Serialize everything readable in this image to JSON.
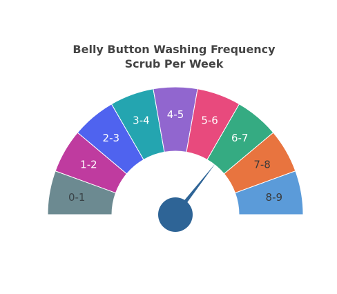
{
  "chart_data": {
    "type": "gauge",
    "title_lines": [
      "Belly Button Washing Frequency",
      "Scrub Per Week"
    ],
    "range": [
      0,
      9
    ],
    "segments": [
      {
        "label": "0-1",
        "from": 0,
        "to": 1,
        "color": "#6c8a91",
        "label_color": "#3a4347"
      },
      {
        "label": "1-2",
        "from": 1,
        "to": 2,
        "color": "#bf3b9f",
        "label_color": "#ffffff"
      },
      {
        "label": "2-3",
        "from": 2,
        "to": 3,
        "color": "#4f63ef",
        "label_color": "#ffffff"
      },
      {
        "label": "3-4",
        "from": 3,
        "to": 4,
        "color": "#24a5b0",
        "label_color": "#ffffff"
      },
      {
        "label": "4-5",
        "from": 4,
        "to": 5,
        "color": "#9166cf",
        "label_color": "#ffffff"
      },
      {
        "label": "5-6",
        "from": 5,
        "to": 6,
        "color": "#e84a7d",
        "label_color": "#ffffff"
      },
      {
        "label": "6-7",
        "from": 6,
        "to": 7,
        "color": "#35ab82",
        "label_color": "#ffffff"
      },
      {
        "label": "7-8",
        "from": 7,
        "to": 8,
        "color": "#e8743f",
        "label_color": "#3a3a3a"
      },
      {
        "label": "8-9",
        "from": 8,
        "to": 9,
        "color": "#5b9bd9",
        "label_color": "#3a3a3a"
      }
    ],
    "needle_value": 6.4,
    "needle_color": "#2e6496"
  }
}
